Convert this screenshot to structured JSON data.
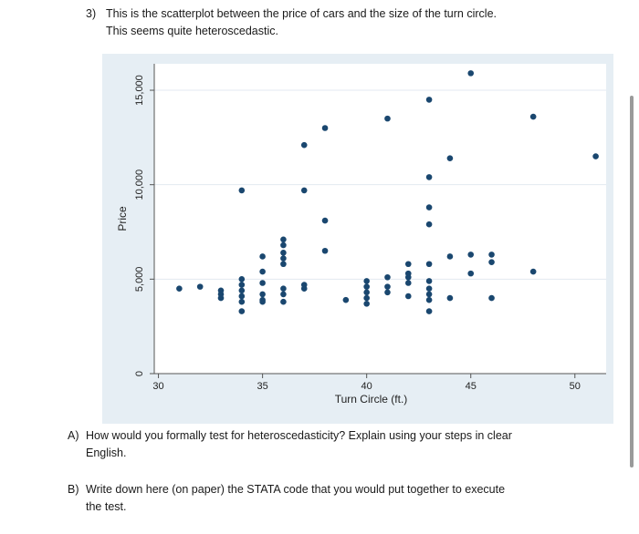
{
  "question3": {
    "number": "3)",
    "line1": "This is the scatterplot between the price of cars and the size of the turn circle.",
    "line2": "This seems quite heteroscedastic."
  },
  "question_a": {
    "label": "A)",
    "line1": "How would you formally test for heteroscedasticity? Explain using your steps in clear",
    "line2": "English."
  },
  "question_b": {
    "label": "B)",
    "line1": "Write down here (on paper) the STATA code that you would put together to execute",
    "line2": "the test."
  },
  "chart_data": {
    "type": "scatter",
    "xlabel": "Turn Circle (ft.)",
    "ylabel": "Price",
    "xlim": [
      29.8,
      51.5
    ],
    "ylim": [
      0,
      16400
    ],
    "xticks": [
      30,
      35,
      40,
      45,
      50
    ],
    "yticks": [
      0,
      5000,
      10000,
      15000
    ],
    "xtick_labels": [
      "30",
      "35",
      "40",
      "45",
      "50"
    ],
    "ytick_labels": [
      "0",
      "5,000",
      "10,000",
      "15,000"
    ],
    "grid": true,
    "colors": {
      "marker": "#1a476f",
      "plot_bg": "#ffffff",
      "outer_bg": "#e6eef4",
      "grid": "#e3eaf0"
    },
    "points": [
      {
        "x": 31,
        "y": 4500
      },
      {
        "x": 32,
        "y": 4600
      },
      {
        "x": 33,
        "y": 4400
      },
      {
        "x": 33,
        "y": 4200
      },
      {
        "x": 33,
        "y": 4000
      },
      {
        "x": 34,
        "y": 9700
      },
      {
        "x": 34,
        "y": 5000
      },
      {
        "x": 34,
        "y": 4700
      },
      {
        "x": 34,
        "y": 4400
      },
      {
        "x": 34,
        "y": 4100
      },
      {
        "x": 34,
        "y": 3800
      },
      {
        "x": 34,
        "y": 3300
      },
      {
        "x": 35,
        "y": 6200
      },
      {
        "x": 35,
        "y": 5400
      },
      {
        "x": 35,
        "y": 4800
      },
      {
        "x": 35,
        "y": 4200
      },
      {
        "x": 35,
        "y": 3900
      },
      {
        "x": 35,
        "y": 3800
      },
      {
        "x": 36,
        "y": 7100
      },
      {
        "x": 36,
        "y": 6800
      },
      {
        "x": 36,
        "y": 6400
      },
      {
        "x": 36,
        "y": 6100
      },
      {
        "x": 36,
        "y": 5800
      },
      {
        "x": 36,
        "y": 4500
      },
      {
        "x": 36,
        "y": 4200
      },
      {
        "x": 36,
        "y": 3800
      },
      {
        "x": 37,
        "y": 12100
      },
      {
        "x": 37,
        "y": 9700
      },
      {
        "x": 37,
        "y": 4700
      },
      {
        "x": 37,
        "y": 4500
      },
      {
        "x": 38,
        "y": 13000
      },
      {
        "x": 38,
        "y": 8100
      },
      {
        "x": 38,
        "y": 6500
      },
      {
        "x": 39,
        "y": 3900
      },
      {
        "x": 40,
        "y": 4900
      },
      {
        "x": 40,
        "y": 4600
      },
      {
        "x": 40,
        "y": 4300
      },
      {
        "x": 40,
        "y": 4000
      },
      {
        "x": 40,
        "y": 3700
      },
      {
        "x": 41,
        "y": 13500
      },
      {
        "x": 41,
        "y": 5100
      },
      {
        "x": 41,
        "y": 4600
      },
      {
        "x": 41,
        "y": 4300
      },
      {
        "x": 42,
        "y": 5800
      },
      {
        "x": 42,
        "y": 5300
      },
      {
        "x": 42,
        "y": 5100
      },
      {
        "x": 42,
        "y": 4800
      },
      {
        "x": 42,
        "y": 4100
      },
      {
        "x": 43,
        "y": 14500
      },
      {
        "x": 43,
        "y": 10400
      },
      {
        "x": 43,
        "y": 8800
      },
      {
        "x": 43,
        "y": 7900
      },
      {
        "x": 43,
        "y": 5800
      },
      {
        "x": 43,
        "y": 4900
      },
      {
        "x": 43,
        "y": 4500
      },
      {
        "x": 43,
        "y": 4200
      },
      {
        "x": 43,
        "y": 3900
      },
      {
        "x": 43,
        "y": 3300
      },
      {
        "x": 44,
        "y": 11400
      },
      {
        "x": 44,
        "y": 6200
      },
      {
        "x": 44,
        "y": 4000
      },
      {
        "x": 45,
        "y": 15900
      },
      {
        "x": 45,
        "y": 6300
      },
      {
        "x": 45,
        "y": 5300
      },
      {
        "x": 46,
        "y": 6300
      },
      {
        "x": 46,
        "y": 5900
      },
      {
        "x": 46,
        "y": 4000
      },
      {
        "x": 48,
        "y": 13600
      },
      {
        "x": 48,
        "y": 5400
      },
      {
        "x": 51,
        "y": 11500
      }
    ]
  }
}
